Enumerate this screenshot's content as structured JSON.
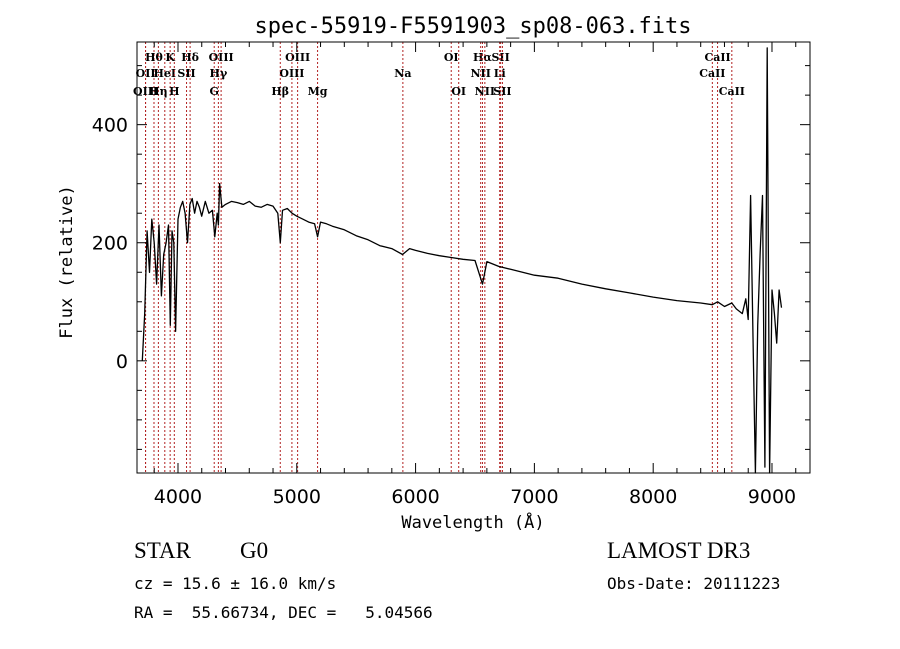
{
  "chart_data": {
    "type": "line",
    "title": "spec-55919-F5591903_sp08-063.fits",
    "xlabel": "Wavelength (Å)",
    "ylabel": "Flux (relative)",
    "xlim": [
      3655,
      9320
    ],
    "ylim": [
      -190,
      540
    ],
    "xticks": [
      4000,
      5000,
      6000,
      7000,
      8000,
      9000
    ],
    "yticks": [
      0,
      200,
      400
    ],
    "x_minor_step": 200,
    "y_minor_step": 50,
    "grid": false,
    "legend": "none",
    "series": [
      {
        "name": "spectrum",
        "color": "#000000",
        "x": [
          3700,
          3720,
          3740,
          3760,
          3780,
          3800,
          3820,
          3840,
          3860,
          3880,
          3900,
          3920,
          3935,
          3950,
          3965,
          3980,
          4000,
          4020,
          4040,
          4060,
          4080,
          4100,
          4120,
          4140,
          4160,
          4180,
          4200,
          4230,
          4260,
          4290,
          4310,
          4330,
          4340,
          4350,
          4370,
          4400,
          4450,
          4500,
          4550,
          4600,
          4650,
          4700,
          4750,
          4800,
          4840,
          4861,
          4880,
          4920,
          4960,
          5000,
          5050,
          5100,
          5150,
          5175,
          5200,
          5250,
          5300,
          5400,
          5500,
          5600,
          5700,
          5800,
          5890,
          5950,
          6000,
          6100,
          6200,
          6300,
          6400,
          6500,
          6563,
          6600,
          6700,
          6800,
          6900,
          7000,
          7200,
          7400,
          7600,
          7800,
          8000,
          8200,
          8400,
          8498,
          8542,
          8600,
          8662,
          8700,
          8750,
          8780,
          8800,
          8820,
          8840,
          8860,
          8880,
          8900,
          8920,
          8940,
          8960,
          8980,
          9000,
          9020,
          9040,
          9060,
          9080
        ],
        "y": [
          0,
          80,
          220,
          150,
          240,
          200,
          130,
          230,
          110,
          180,
          200,
          230,
          60,
          220,
          200,
          50,
          240,
          260,
          270,
          250,
          200,
          265,
          275,
          250,
          270,
          260,
          245,
          270,
          250,
          255,
          210,
          250,
          230,
          300,
          260,
          265,
          270,
          268,
          265,
          270,
          262,
          260,
          265,
          262,
          250,
          200,
          255,
          258,
          250,
          245,
          240,
          235,
          232,
          210,
          235,
          232,
          228,
          222,
          212,
          205,
          195,
          190,
          180,
          190,
          187,
          182,
          178,
          175,
          172,
          170,
          130,
          168,
          160,
          155,
          150,
          145,
          140,
          130,
          122,
          115,
          108,
          102,
          98,
          95,
          100,
          92,
          98,
          88,
          80,
          105,
          70,
          280,
          40,
          -200,
          60,
          180,
          280,
          -180,
          530,
          -250,
          120,
          80,
          30,
          120,
          90
        ]
      }
    ],
    "line_markers": [
      {
        "label": "Hθ",
        "wavelength": 3798,
        "row": 1
      },
      {
        "label": "OII",
        "wavelength": 3727,
        "row": 2
      },
      {
        "label": "OIII",
        "wavelength": 3727,
        "row": 3
      },
      {
        "label": "K",
        "wavelength": 3934,
        "row": 1
      },
      {
        "label": "HeI",
        "wavelength": 3889,
        "row": 2
      },
      {
        "label": "Hη",
        "wavelength": 3835,
        "row": 3
      },
      {
        "label": "Hδ",
        "wavelength": 4102,
        "row": 1
      },
      {
        "label": "SII",
        "wavelength": 4072,
        "row": 2
      },
      {
        "label": "H",
        "wavelength": 3969,
        "row": 3
      },
      {
        "label": "OIII",
        "wavelength": 4363,
        "row": 1
      },
      {
        "label": "Hγ",
        "wavelength": 4340,
        "row": 2
      },
      {
        "label": "G",
        "wavelength": 4305,
        "row": 3
      },
      {
        "label": "OIII",
        "wavelength": 5007,
        "row": 1
      },
      {
        "label": "OIII",
        "wavelength": 4959,
        "row": 2
      },
      {
        "label": "Hβ",
        "wavelength": 4861,
        "row": 3
      },
      {
        "label": "Mg",
        "wavelength": 5175,
        "row": 3
      },
      {
        "label": "Na",
        "wavelength": 5893,
        "row": 2
      },
      {
        "label": "OI",
        "wavelength": 6300,
        "row": 1
      },
      {
        "label": "OI",
        "wavelength": 6363,
        "row": 3
      },
      {
        "label": "Hα",
        "wavelength": 6563,
        "row": 1
      },
      {
        "label": "SII",
        "wavelength": 6716,
        "row": 1
      },
      {
        "label": "NII",
        "wavelength": 6548,
        "row": 2
      },
      {
        "label": "Li",
        "wavelength": 6708,
        "row": 2
      },
      {
        "label": "NII",
        "wavelength": 6583,
        "row": 3
      },
      {
        "label": "SII",
        "wavelength": 6731,
        "row": 3
      },
      {
        "label": "CaII",
        "wavelength": 8542,
        "row": 1
      },
      {
        "label": "CaII",
        "wavelength": 8498,
        "row": 2
      },
      {
        "label": "CaII",
        "wavelength": 8662,
        "row": 3
      }
    ],
    "marker_color": "#b22222"
  },
  "info": {
    "object_class": "STAR",
    "subclass": "G0",
    "redshift": "cz = 15.6 ± 16.0 km/s",
    "coords": "RA =  55.66734, DEC =   5.04566",
    "survey": "LAMOST DR3",
    "obs_date": "Obs-Date: 20111223"
  }
}
